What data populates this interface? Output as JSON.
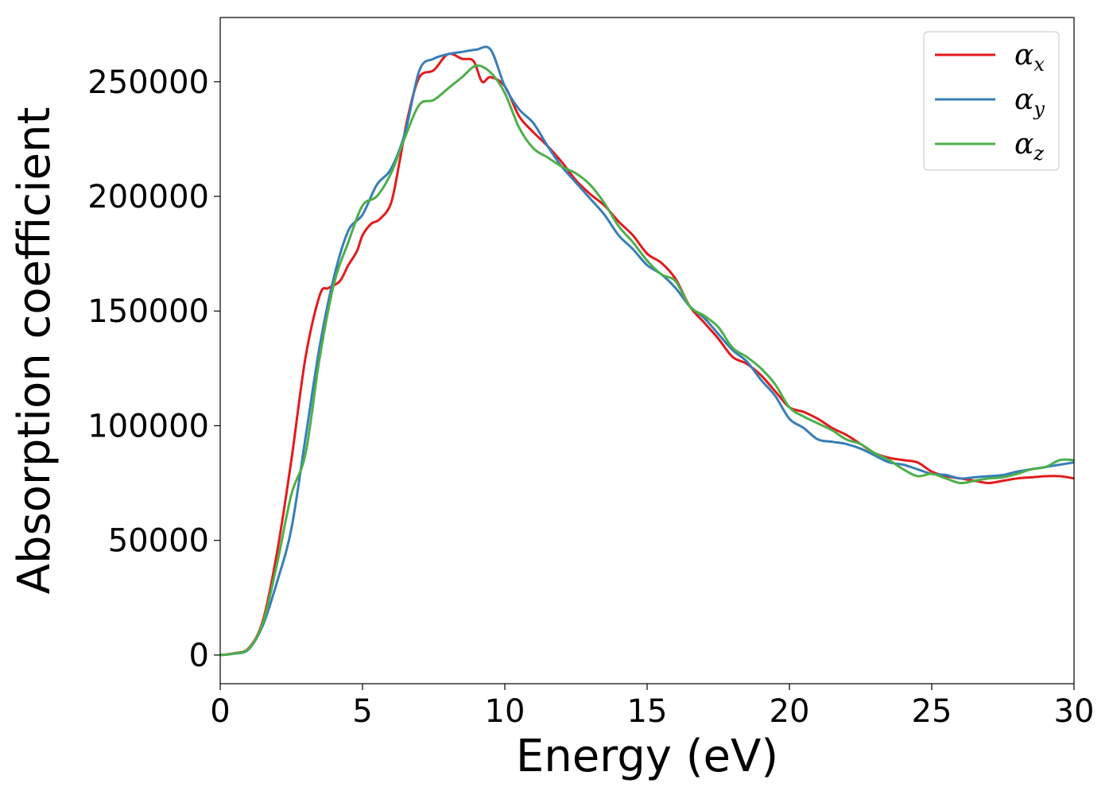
{
  "chart_data": {
    "type": "line",
    "title": "",
    "xlabel": "Energy (eV)",
    "ylabel": "Absorption coefficient",
    "xlim": [
      0,
      30
    ],
    "ylim": [
      -12500,
      278000
    ],
    "xticks": [
      0,
      5,
      10,
      15,
      20,
      25,
      30
    ],
    "xtick_labels": [
      "0",
      "5",
      "10",
      "15",
      "20",
      "25",
      "30"
    ],
    "yticks": [
      0,
      50000,
      100000,
      150000,
      200000,
      250000
    ],
    "ytick_labels": [
      "0",
      "50000",
      "100000",
      "150000",
      "200000",
      "250000"
    ],
    "grid": false,
    "legend_position": "top-right",
    "series": [
      {
        "name": "α_x",
        "legend_symbol": "α",
        "legend_sub": "x",
        "color": "#e41a1c",
        "x": [
          0,
          0.5,
          1.0,
          1.5,
          2.0,
          2.5,
          3.0,
          3.5,
          3.8,
          4.2,
          4.5,
          4.8,
          5.0,
          5.3,
          5.6,
          6.0,
          6.3,
          6.6,
          7.0,
          7.5,
          8.0,
          8.5,
          8.9,
          9.2,
          9.5,
          10.0,
          10.5,
          11.0,
          11.5,
          12.0,
          12.5,
          13.0,
          13.5,
          14.0,
          14.5,
          15.0,
          15.5,
          16.0,
          16.5,
          17.0,
          17.5,
          18.0,
          18.5,
          19.0,
          19.5,
          20.0,
          20.5,
          21.0,
          21.5,
          22.0,
          22.5,
          23.0,
          23.5,
          24.0,
          24.5,
          25.0,
          25.5,
          26.0,
          26.5,
          27.0,
          27.5,
          28.0,
          28.5,
          29.0,
          29.5,
          30.0
        ],
        "y": [
          0,
          800,
          3000,
          15000,
          45000,
          85000,
          130000,
          157000,
          160000,
          163000,
          170000,
          176000,
          183000,
          188000,
          190000,
          197000,
          215000,
          235000,
          252000,
          255000,
          262000,
          260000,
          259000,
          250000,
          252000,
          248000,
          235000,
          228000,
          222000,
          215000,
          207000,
          201000,
          196000,
          189000,
          183000,
          175000,
          171000,
          164000,
          152000,
          145000,
          138000,
          130000,
          127000,
          122000,
          115000,
          108000,
          106000,
          103000,
          99000,
          96000,
          92000,
          88000,
          86000,
          85000,
          84000,
          80000,
          78000,
          77000,
          76000,
          75000,
          76000,
          77000,
          77500,
          78000,
          78000,
          77000
        ],
        "x_extra": [],
        "y_extra": []
      },
      {
        "name": "α_y",
        "legend_symbol": "α",
        "legend_sub": "y",
        "color": "#377eb8",
        "x": [
          0,
          0.5,
          1.0,
          1.5,
          2.0,
          2.5,
          3.0,
          3.5,
          4.0,
          4.5,
          5.0,
          5.5,
          6.0,
          6.5,
          7.0,
          7.5,
          8.0,
          8.5,
          9.0,
          9.5,
          10.0,
          10.5,
          11.0,
          11.5,
          12.0,
          12.5,
          13.0,
          13.5,
          14.0,
          14.5,
          15.0,
          15.5,
          16.0,
          16.5,
          17.0,
          17.5,
          18.0,
          18.5,
          19.0,
          19.5,
          20.0,
          20.5,
          21.0,
          21.5,
          22.0,
          22.5,
          23.0,
          23.5,
          24.0,
          24.5,
          25.0,
          25.5,
          26.0,
          26.5,
          27.0,
          27.5,
          28.0,
          28.5,
          29.0,
          29.5,
          30.0
        ],
        "y": [
          0,
          600,
          2500,
          13000,
          32000,
          55000,
          95000,
          135000,
          165000,
          185000,
          192000,
          205000,
          212000,
          228000,
          255000,
          260000,
          262000,
          263000,
          264000,
          264000,
          248000,
          238000,
          232000,
          222000,
          213000,
          206000,
          199000,
          192000,
          183000,
          177000,
          170000,
          166000,
          160000,
          152000,
          147000,
          140000,
          133000,
          128000,
          120000,
          113000,
          103000,
          99000,
          94000,
          93000,
          92000,
          90000,
          87000,
          84000,
          83000,
          81000,
          79000,
          78500,
          77000,
          77500,
          78000,
          78500,
          80000,
          81000,
          82000,
          83000,
          84000
        ]
      },
      {
        "name": "α_z",
        "legend_symbol": "α",
        "legend_sub": "z",
        "color": "#4daf4a",
        "x": [
          0,
          0.5,
          1.0,
          1.5,
          2.0,
          2.5,
          3.0,
          3.5,
          4.0,
          4.5,
          5.0,
          5.5,
          6.0,
          6.5,
          7.0,
          7.5,
          8.0,
          8.5,
          9.0,
          9.5,
          10.0,
          10.5,
          11.0,
          11.5,
          12.0,
          12.5,
          13.0,
          13.5,
          14.0,
          14.5,
          15.0,
          15.5,
          16.0,
          16.5,
          17.0,
          17.5,
          18.0,
          18.5,
          19.0,
          19.5,
          20.0,
          20.5,
          21.0,
          21.5,
          22.0,
          22.5,
          23.0,
          23.5,
          24.0,
          24.5,
          25.0,
          25.5,
          26.0,
          26.5,
          27.0,
          27.5,
          28.0,
          28.5,
          29.0,
          29.5,
          30.0
        ],
        "y": [
          0,
          700,
          2800,
          14000,
          40000,
          70000,
          88000,
          130000,
          162000,
          180000,
          196000,
          200000,
          210000,
          226000,
          240000,
          242000,
          247000,
          252000,
          257000,
          254000,
          245000,
          230000,
          221000,
          217000,
          213000,
          210000,
          205000,
          197000,
          187000,
          180000,
          172000,
          166000,
          163000,
          152000,
          148000,
          143000,
          134000,
          130000,
          125000,
          118000,
          108000,
          104000,
          101000,
          98000,
          94000,
          92000,
          88000,
          85000,
          81000,
          78000,
          79000,
          77000,
          75000,
          76000,
          77000,
          77500,
          79000,
          81000,
          82000,
          85000,
          85000
        ]
      }
    ]
  }
}
